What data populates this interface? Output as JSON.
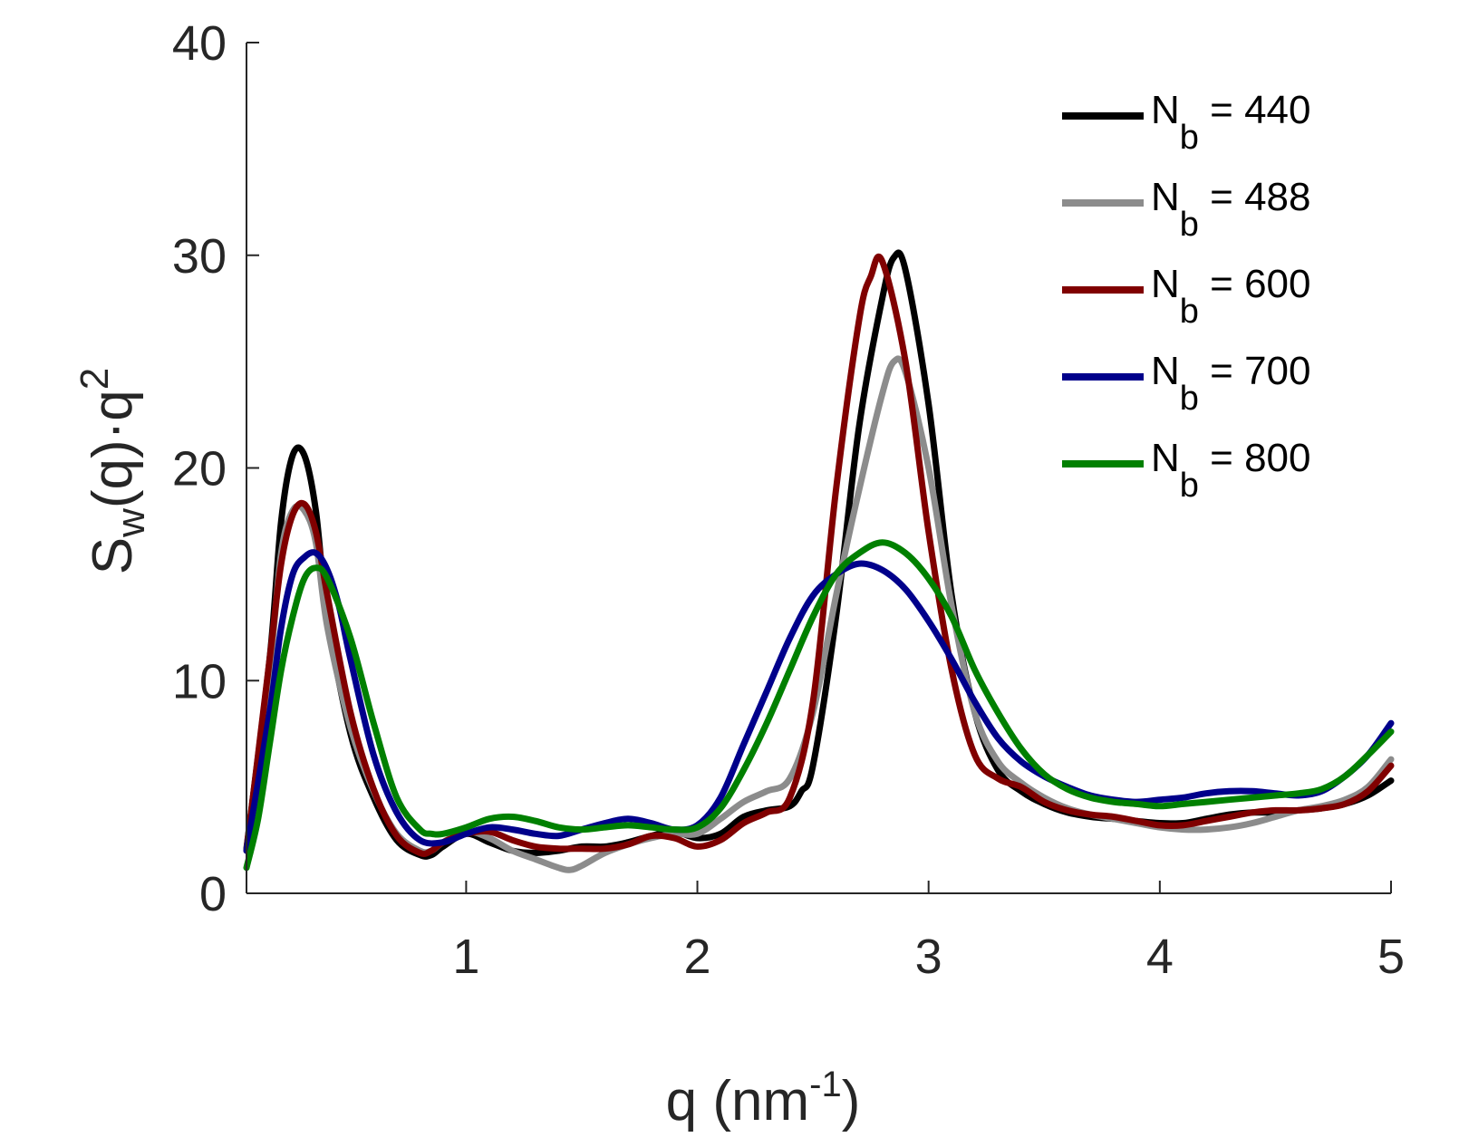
{
  "chart_data": {
    "type": "line",
    "title": "",
    "xlabel": "q (nm^-1)",
    "xlabel_main": "q (nm",
    "xlabel_sup": "-1",
    "xlabel_close": ")",
    "ylabel_main": "S",
    "ylabel_sub": "w",
    "ylabel_mid": "(q)·q",
    "ylabel_sup": "2",
    "xlim": [
      0.05,
      5
    ],
    "ylim": [
      0,
      40
    ],
    "xticks": [
      1,
      2,
      3,
      4,
      5
    ],
    "xtick_labels": [
      "1",
      "2",
      "3",
      "4",
      "5"
    ],
    "yticks": [
      0,
      10,
      20,
      30,
      40
    ],
    "ytick_labels": [
      "0",
      "10",
      "20",
      "30",
      "40"
    ],
    "grid": false,
    "legend_position": "top-right",
    "series": [
      {
        "name": "Nb = 440",
        "label_base": "N",
        "label_sub": "b",
        "label_rest": " = 440",
        "color": "#000000",
        "x": [
          0.05,
          0.15,
          0.2,
          0.25,
          0.3,
          0.35,
          0.4,
          0.5,
          0.6,
          0.7,
          0.8,
          0.85,
          0.9,
          1.0,
          1.1,
          1.2,
          1.3,
          1.4,
          1.5,
          1.6,
          1.7,
          1.8,
          1.9,
          2.0,
          2.1,
          2.2,
          2.3,
          2.4,
          2.45,
          2.5,
          2.6,
          2.7,
          2.8,
          2.85,
          2.9,
          3.0,
          3.1,
          3.2,
          3.3,
          3.4,
          3.5,
          3.6,
          3.7,
          3.8,
          3.9,
          4.0,
          4.1,
          4.2,
          4.3,
          4.4,
          4.5,
          4.6,
          4.7,
          4.8,
          4.9,
          5.0
        ],
        "y": [
          2.1,
          11.0,
          17.5,
          20.6,
          20.6,
          18.0,
          13.0,
          7.5,
          4.5,
          2.5,
          1.8,
          1.8,
          2.2,
          2.8,
          2.4,
          2.0,
          1.9,
          2.0,
          2.2,
          2.2,
          2.4,
          2.7,
          2.9,
          2.6,
          2.8,
          3.6,
          3.9,
          4.1,
          4.8,
          6.0,
          13.0,
          22.0,
          28.0,
          29.9,
          29.3,
          23.0,
          14.0,
          8.5,
          5.8,
          4.8,
          4.2,
          3.8,
          3.6,
          3.5,
          3.4,
          3.3,
          3.3,
          3.5,
          3.7,
          3.8,
          3.8,
          3.9,
          4.0,
          4.2,
          4.6,
          5.3
        ]
      },
      {
        "name": "Nb = 488",
        "label_base": "N",
        "label_sub": "b",
        "label_rest": " = 488",
        "color": "#8c8c8c",
        "x": [
          0.05,
          0.15,
          0.2,
          0.25,
          0.3,
          0.35,
          0.4,
          0.5,
          0.6,
          0.7,
          0.8,
          0.85,
          0.9,
          1.0,
          1.1,
          1.2,
          1.3,
          1.4,
          1.45,
          1.5,
          1.6,
          1.7,
          1.8,
          1.9,
          2.0,
          2.1,
          2.2,
          2.3,
          2.4,
          2.5,
          2.6,
          2.7,
          2.8,
          2.85,
          2.9,
          3.0,
          3.1,
          3.2,
          3.3,
          3.4,
          3.5,
          3.6,
          3.7,
          3.8,
          3.9,
          4.0,
          4.1,
          4.2,
          4.3,
          4.4,
          4.5,
          4.6,
          4.7,
          4.8,
          4.9,
          5.0
        ],
        "y": [
          2.0,
          10.5,
          16.0,
          18.0,
          18.0,
          16.5,
          12.5,
          7.8,
          4.8,
          2.8,
          2.0,
          2.0,
          2.4,
          2.9,
          2.6,
          2.0,
          1.6,
          1.2,
          1.1,
          1.3,
          1.9,
          2.3,
          2.6,
          2.8,
          2.8,
          3.5,
          4.3,
          4.8,
          5.4,
          8.5,
          14.0,
          19.0,
          23.5,
          25.0,
          24.5,
          20.0,
          13.5,
          8.5,
          6.2,
          5.2,
          4.5,
          4.0,
          3.7,
          3.5,
          3.3,
          3.1,
          3.0,
          3.0,
          3.1,
          3.3,
          3.6,
          3.9,
          4.1,
          4.4,
          5.0,
          6.3
        ]
      },
      {
        "name": "Nb = 600",
        "label_base": "N",
        "label_sub": "b",
        "label_rest": " = 600",
        "color": "#800000",
        "x": [
          0.05,
          0.15,
          0.2,
          0.25,
          0.3,
          0.35,
          0.4,
          0.5,
          0.6,
          0.7,
          0.8,
          0.85,
          0.9,
          1.0,
          1.1,
          1.2,
          1.3,
          1.4,
          1.5,
          1.6,
          1.7,
          1.8,
          1.9,
          2.0,
          2.1,
          2.2,
          2.3,
          2.4,
          2.5,
          2.6,
          2.7,
          2.75,
          2.8,
          2.9,
          3.0,
          3.1,
          3.2,
          3.3,
          3.4,
          3.5,
          3.6,
          3.7,
          3.8,
          3.9,
          4.0,
          4.1,
          4.2,
          4.3,
          4.4,
          4.5,
          4.6,
          4.7,
          4.8,
          4.9,
          5.0
        ],
        "y": [
          2.0,
          11.0,
          15.5,
          17.8,
          18.3,
          17.0,
          14.0,
          8.5,
          4.9,
          2.7,
          1.9,
          2.0,
          2.4,
          2.8,
          2.9,
          2.5,
          2.2,
          2.1,
          2.1,
          2.1,
          2.3,
          2.7,
          2.6,
          2.2,
          2.5,
          3.3,
          3.8,
          4.5,
          9.0,
          19.0,
          27.0,
          29.0,
          29.7,
          25.0,
          17.0,
          10.5,
          6.5,
          5.4,
          5.0,
          4.3,
          3.9,
          3.7,
          3.6,
          3.4,
          3.2,
          3.2,
          3.4,
          3.6,
          3.8,
          3.9,
          3.9,
          4.0,
          4.2,
          4.8,
          6.0
        ]
      },
      {
        "name": "Nb = 700",
        "label_base": "N",
        "label_sub": "b",
        "label_rest": " = 700",
        "color": "#00008b",
        "x": [
          0.05,
          0.15,
          0.2,
          0.25,
          0.3,
          0.35,
          0.4,
          0.45,
          0.5,
          0.6,
          0.7,
          0.8,
          0.9,
          1.0,
          1.1,
          1.2,
          1.3,
          1.4,
          1.5,
          1.6,
          1.7,
          1.8,
          1.9,
          2.0,
          2.1,
          2.2,
          2.3,
          2.4,
          2.5,
          2.6,
          2.7,
          2.8,
          2.9,
          3.0,
          3.1,
          3.2,
          3.3,
          3.4,
          3.5,
          3.6,
          3.7,
          3.8,
          3.9,
          4.0,
          4.1,
          4.2,
          4.3,
          4.4,
          4.5,
          4.6,
          4.7,
          4.8,
          4.9,
          5.0
        ],
        "y": [
          2.0,
          8.5,
          12.5,
          15.0,
          15.8,
          16.0,
          15.2,
          13.5,
          11.0,
          6.5,
          3.8,
          2.5,
          2.4,
          2.8,
          3.1,
          3.0,
          2.8,
          2.7,
          3.0,
          3.3,
          3.5,
          3.3,
          3.0,
          3.2,
          4.5,
          7.0,
          9.5,
          12.0,
          14.0,
          15.0,
          15.5,
          15.2,
          14.3,
          12.8,
          11.0,
          9.0,
          7.3,
          6.2,
          5.5,
          5.0,
          4.6,
          4.4,
          4.3,
          4.4,
          4.5,
          4.7,
          4.8,
          4.8,
          4.7,
          4.6,
          4.8,
          5.5,
          6.5,
          8.0
        ]
      },
      {
        "name": "Nb = 800",
        "label_base": "N",
        "label_sub": "b",
        "label_rest": " = 800",
        "color": "#008000",
        "x": [
          0.05,
          0.1,
          0.15,
          0.2,
          0.25,
          0.3,
          0.35,
          0.4,
          0.5,
          0.6,
          0.7,
          0.8,
          0.85,
          0.9,
          1.0,
          1.1,
          1.2,
          1.3,
          1.4,
          1.5,
          1.6,
          1.7,
          1.8,
          1.9,
          2.0,
          2.1,
          2.2,
          2.3,
          2.4,
          2.5,
          2.6,
          2.7,
          2.8,
          2.9,
          3.0,
          3.1,
          3.2,
          3.3,
          3.4,
          3.5,
          3.6,
          3.7,
          3.8,
          3.9,
          4.0,
          4.1,
          4.2,
          4.3,
          4.4,
          4.5,
          4.6,
          4.7,
          4.8,
          4.9,
          5.0
        ],
        "y": [
          1.2,
          3.5,
          7.0,
          10.5,
          13.0,
          14.8,
          15.3,
          14.8,
          12.0,
          8.0,
          4.5,
          3.0,
          2.8,
          2.8,
          3.1,
          3.5,
          3.6,
          3.4,
          3.1,
          3.0,
          3.1,
          3.2,
          3.1,
          3.0,
          3.1,
          4.0,
          5.8,
          8.0,
          10.5,
          13.0,
          15.0,
          16.0,
          16.5,
          16.0,
          14.8,
          13.0,
          10.5,
          8.5,
          6.8,
          5.6,
          4.9,
          4.5,
          4.3,
          4.2,
          4.1,
          4.2,
          4.3,
          4.4,
          4.5,
          4.6,
          4.7,
          4.9,
          5.5,
          6.5,
          7.6
        ]
      }
    ]
  }
}
